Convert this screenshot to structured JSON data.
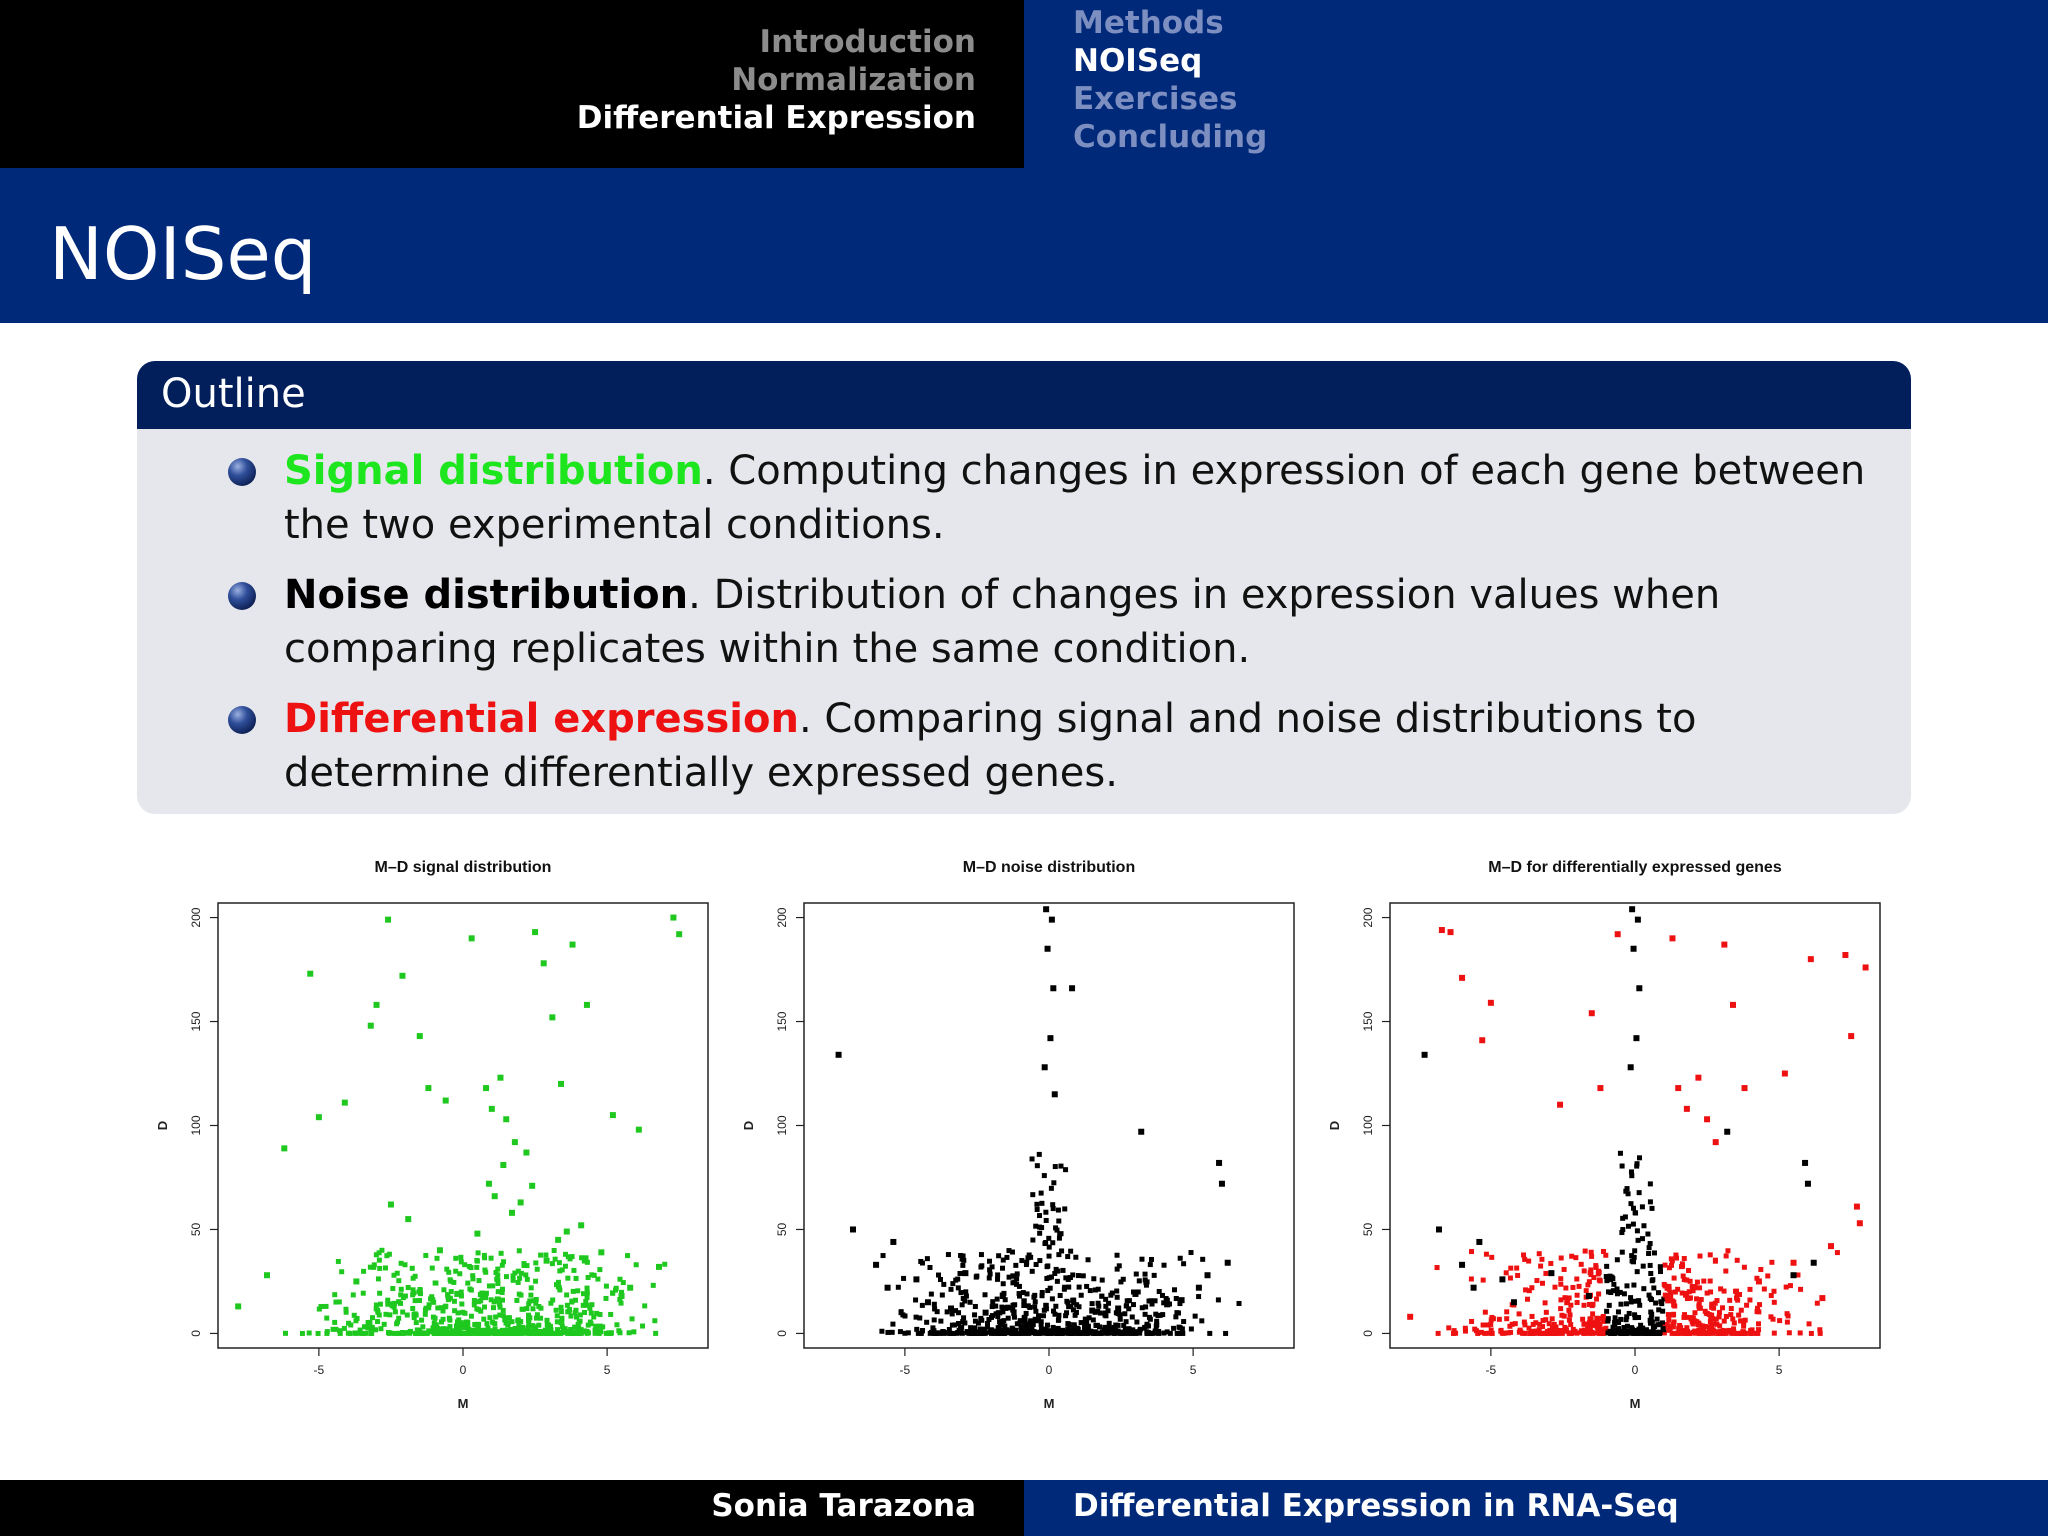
{
  "nav": {
    "sections": [
      "Introduction",
      "Normalization",
      "Differential Expression"
    ],
    "subsections": [
      "Methods",
      "NOISeq",
      "Exercises",
      "Concluding"
    ]
  },
  "slide": {
    "title": "NOISeq"
  },
  "block": {
    "title": "Outline",
    "items": [
      {
        "term": "Signal distribution",
        "text": ". Computing changes in expression of each gene between the two experimental conditions."
      },
      {
        "term": "Noise distribution",
        "text": ". Distribution of changes in expression values when comparing replicates within the same condition."
      },
      {
        "term": "Differential expression",
        "text": ". Comparing signal and noise distributions to determine differentially expressed genes."
      }
    ]
  },
  "chart_data": [
    {
      "type": "scatter",
      "title": "M–D signal distribution",
      "xlabel": "M",
      "ylabel": "D",
      "xlim": [
        -8.5,
        8.5
      ],
      "ylim": [
        -7,
        207
      ],
      "xticks": [
        -5,
        0,
        5
      ],
      "yticks": [
        0,
        50,
        100,
        150,
        200
      ],
      "point_color": "#1ec81e",
      "series": [
        {
          "color": "#1ec81e",
          "x": [
            -6.2,
            -5.3,
            -5,
            -4.1,
            -3.2,
            -3,
            -2.6,
            -2.1,
            -1.5,
            -1.2,
            -0.6,
            0.3,
            0.8,
            1,
            1.3,
            1.5,
            1.8,
            2.2,
            2.5,
            2.8,
            3.1,
            3.4,
            3.8,
            4.3,
            5.2,
            6.1,
            7.3,
            7.5,
            -7.8,
            -6.8,
            5.5,
            6.8,
            -2.5,
            -1.9,
            -0.8,
            0.5,
            1.1,
            1.7,
            2.4,
            3.3,
            4.1,
            4.8,
            -3.7,
            -0.2,
            2.9,
            0.9,
            1.4,
            2,
            3.6,
            5.8
          ],
          "y": [
            89,
            173,
            104,
            111,
            148,
            158,
            199,
            172,
            143,
            118,
            112,
            190,
            118,
            108,
            123,
            103,
            92,
            87,
            193,
            178,
            152,
            120,
            187,
            158,
            105,
            98,
            200,
            192,
            13,
            28,
            18,
            32,
            62,
            55,
            40,
            48,
            66,
            58,
            71,
            45,
            52,
            39,
            25,
            19,
            35,
            72,
            81,
            63,
            49,
            22
          ]
        }
      ]
    },
    {
      "type": "scatter",
      "title": "M–D noise distribution",
      "xlabel": "M",
      "ylabel": "D",
      "xlim": [
        -8.5,
        8.5
      ],
      "ylim": [
        -7,
        207
      ],
      "xticks": [
        -5,
        0,
        5
      ],
      "yticks": [
        0,
        50,
        100,
        150,
        200
      ],
      "point_color": "#000000",
      "series": [
        {
          "color": "#000000",
          "x": [
            -7.3,
            -6.8,
            -5.4,
            -4.6,
            -0.1,
            0.1,
            -0.05,
            0.15,
            0.05,
            -0.15,
            0.2,
            0.8,
            3.2,
            5.9,
            6,
            6.2,
            5.5,
            5.2,
            -6,
            -5.6,
            -4.2,
            -3.4,
            -2.9,
            -2.2,
            -1.6,
            1.5,
            2.4,
            3,
            4.1,
            4.6
          ],
          "y": [
            134,
            50,
            44,
            26,
            204,
            199,
            185,
            166,
            142,
            128,
            115,
            166,
            97,
            82,
            72,
            34,
            28,
            22,
            33,
            22,
            15,
            12,
            29,
            10,
            18,
            11,
            12,
            19,
            14,
            16
          ]
        }
      ]
    },
    {
      "type": "scatter",
      "title": "M–D for differentially expressed genes",
      "xlabel": "M",
      "ylabel": "D",
      "xlim": [
        -8.5,
        8.5
      ],
      "ylim": [
        -7,
        207
      ],
      "xticks": [
        -5,
        0,
        5
      ],
      "yticks": [
        0,
        50,
        100,
        150,
        200
      ],
      "series": [
        {
          "name": "",
          "color": "#ee1111",
          "x": [
            -6.7,
            -6.4,
            -6,
            -5.3,
            -5,
            -2.6,
            -1.5,
            -1.2,
            -0.6,
            1.3,
            1.5,
            1.8,
            2.2,
            2.5,
            2.8,
            3.1,
            3.4,
            3.8,
            5.2,
            6.1,
            7.3,
            7.5,
            8,
            7.8,
            -7.8,
            4.3,
            5.5,
            6.8,
            7.7,
            6.5
          ],
          "y": [
            194,
            193,
            171,
            141,
            159,
            110,
            154,
            118,
            192,
            190,
            118,
            108,
            123,
            103,
            92,
            187,
            158,
            118,
            125,
            180,
            182,
            143,
            176,
            53,
            8,
            25,
            34,
            42,
            61,
            17
          ]
        },
        {
          "name": "",
          "color": "#000000",
          "x": [
            -7.3,
            -6.8,
            -5.4,
            -4.6,
            -0.1,
            0.1,
            -0.05,
            0.15,
            0.05,
            -0.15,
            3.2,
            5.9,
            6,
            6.2,
            5.5,
            -6,
            -5.6,
            -4.2,
            -2.9,
            -1.6
          ],
          "y": [
            134,
            50,
            44,
            26,
            204,
            199,
            185,
            166,
            142,
            128,
            97,
            82,
            72,
            34,
            28,
            33,
            22,
            15,
            29,
            18
          ]
        }
      ]
    }
  ],
  "footer": {
    "author": "Sonia Tarazona",
    "talk": "Differential Expression in RNA-Seq"
  }
}
